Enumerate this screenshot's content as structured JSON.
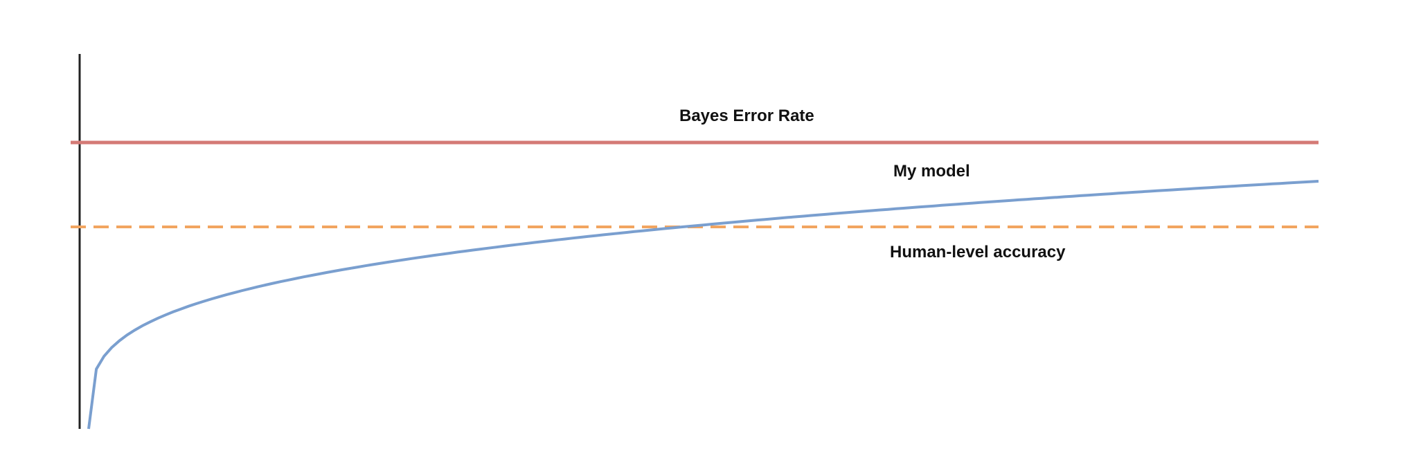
{
  "labels": {
    "bayes_error_rate": "Bayes Error Rate",
    "my_model": "My model",
    "human_level_accuracy": "Human-level accuracy"
  },
  "colors": {
    "bayes_line": "#d47a76",
    "model_curve": "#7a9fcf",
    "human_line": "#f2a560",
    "axis": "#222222",
    "text": "#111111"
  },
  "lines": {
    "bayes": "solid",
    "human": "dashed",
    "model": "curve rising toward the Bayes error rate, crossing human-level accuracy"
  }
}
